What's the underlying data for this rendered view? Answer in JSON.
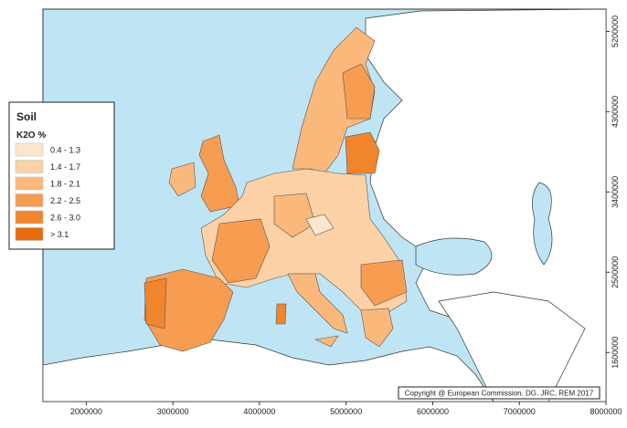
{
  "map": {
    "xlim": [
      1500000,
      8000000
    ],
    "xticks": [
      2000000,
      3000000,
      4000000,
      5000000,
      6000000,
      7000000,
      8000000
    ],
    "ylim": [
      1050000,
      5450000
    ],
    "yticks": [
      1600000,
      2500000,
      3400000,
      4300000,
      5200000
    ],
    "legend": {
      "title": "Soil",
      "subtitle": "K2O %",
      "items": [
        {
          "label": "0.4 - 1.3",
          "color": "#fde6cf"
        },
        {
          "label": "1.4 - 1.7",
          "color": "#fcd1a5"
        },
        {
          "label": "1.8 - 2.1",
          "color": "#fbb87b"
        },
        {
          "label": "2.2 - 2.5",
          "color": "#f79d52"
        },
        {
          "label": "2.6 - 3.0",
          "color": "#f1852e"
        },
        {
          "label": "> 3.1",
          "color": "#e56c0f"
        }
      ]
    },
    "copyright": "Copyright @ European Commission. DG. JRC, REM 2017"
  }
}
